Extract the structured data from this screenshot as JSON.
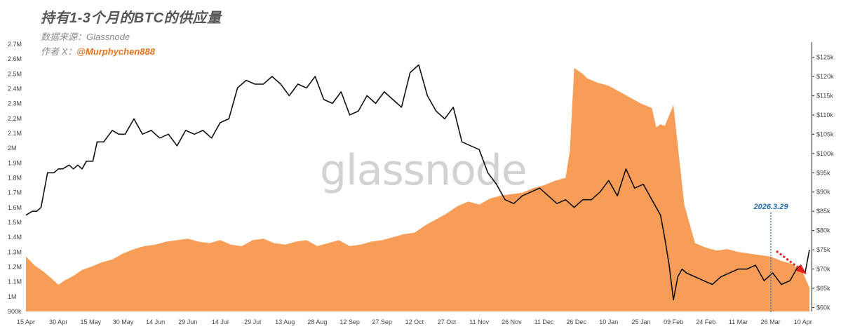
{
  "title": "持有1-3个月的BTC的供应量",
  "source_label": "数据来源：Glassnode",
  "author_label": "作者 X：",
  "author_handle": "@Murphychen888",
  "watermark": "glassnode",
  "colors": {
    "supply_fill": "#f89d58",
    "price_line": "#111111",
    "marker_line": "#1f6fb5",
    "arrow": "#e3221f",
    "title": "#555555",
    "handle": "#e8721c"
  },
  "chart_data": {
    "type": "area",
    "x_tick_labels": [
      "15 Apr",
      "30 Apr",
      "15 May",
      "30 May",
      "14 Jun",
      "29 Jun",
      "14 Jul",
      "29 Jul",
      "13 Aug",
      "28 Aug",
      "12 Sep",
      "27 Sep",
      "12 Oct",
      "27 Oct",
      "11 Nov",
      "26 Nov",
      "11 Dec",
      "26 Dec",
      "10 Jan",
      "25 Jan",
      "09 Feb",
      "24 Feb",
      "11 Mar",
      "26 Mar",
      "10 Apr"
    ],
    "left_axis": {
      "ylim": [
        900000,
        2700000
      ],
      "tick_labels": [
        "900k",
        "1M",
        "1.1M",
        "1.2M",
        "1.3M",
        "1.4M",
        "1.5M",
        "1.6M",
        "1.7M",
        "1.8M",
        "1.9M",
        "2M",
        "2.1M",
        "2.2M",
        "2.3M",
        "2.4M",
        "2.5M",
        "2.6M",
        "2.7M"
      ]
    },
    "right_axis": {
      "ylim": [
        60000,
        128000
      ],
      "tick_labels": [
        "$60k",
        "$65k",
        "$70k",
        "$75k",
        "$80k",
        "$85k",
        "$90k",
        "$95k",
        "$100k",
        "$105k",
        "$110k",
        "$115k",
        "$120k",
        "$125k"
      ]
    },
    "series": [
      {
        "axis": "left",
        "x_days": [
          0,
          4,
          8,
          12,
          15,
          18,
          22,
          26,
          30,
          35,
          40,
          45,
          50,
          55,
          60,
          65,
          70,
          75,
          80,
          85,
          90,
          95,
          100,
          105,
          110,
          115,
          120,
          125,
          130,
          135,
          140,
          145,
          150,
          155,
          160,
          165,
          170,
          175,
          180,
          185,
          190,
          195,
          200,
          205,
          210,
          215,
          220,
          225,
          230,
          235,
          240,
          245,
          250,
          252,
          254,
          256,
          258,
          260,
          265,
          270,
          275,
          280,
          285,
          290,
          292,
          294,
          296,
          300,
          305,
          310,
          315,
          320,
          325,
          330,
          335,
          340,
          345,
          350,
          355,
          360,
          363
        ],
        "values": [
          1270000,
          1210000,
          1170000,
          1120000,
          1080000,
          1110000,
          1140000,
          1180000,
          1200000,
          1230000,
          1250000,
          1290000,
          1320000,
          1340000,
          1350000,
          1370000,
          1380000,
          1390000,
          1370000,
          1360000,
          1380000,
          1350000,
          1340000,
          1380000,
          1390000,
          1360000,
          1350000,
          1370000,
          1380000,
          1340000,
          1360000,
          1380000,
          1340000,
          1350000,
          1370000,
          1380000,
          1400000,
          1420000,
          1430000,
          1480000,
          1520000,
          1560000,
          1610000,
          1640000,
          1620000,
          1660000,
          1680000,
          1690000,
          1700000,
          1730000,
          1750000,
          1780000,
          1800000,
          1980000,
          2540000,
          2520000,
          2500000,
          2470000,
          2440000,
          2420000,
          2380000,
          2340000,
          2300000,
          2270000,
          2140000,
          2160000,
          2150000,
          2290000,
          1620000,
          1360000,
          1330000,
          1310000,
          1320000,
          1300000,
          1290000,
          1280000,
          1270000,
          1240000,
          1220000,
          1160000,
          1060000
        ]
      },
      {
        "axis": "right",
        "x_days": [
          0,
          3,
          5,
          7,
          10,
          13,
          15,
          17,
          20,
          22,
          24,
          26,
          28,
          31,
          33,
          36,
          40,
          43,
          46,
          50,
          54,
          58,
          62,
          66,
          70,
          74,
          78,
          82,
          86,
          90,
          94,
          98,
          102,
          106,
          110,
          114,
          118,
          122,
          126,
          130,
          134,
          138,
          142,
          146,
          150,
          154,
          158,
          162,
          166,
          170,
          174,
          178,
          182,
          186,
          190,
          194,
          198,
          202,
          206,
          210,
          214,
          218,
          222,
          226,
          230,
          234,
          238,
          242,
          246,
          250,
          254,
          258,
          262,
          266,
          270,
          274,
          278,
          282,
          286,
          290,
          294,
          296,
          298,
          300,
          302,
          304,
          306,
          310,
          314,
          318,
          322,
          326,
          330,
          334,
          338,
          342,
          346,
          350,
          354,
          357,
          359,
          361,
          363
        ],
        "values": [
          84000,
          85000,
          85000,
          86000,
          95000,
          95000,
          96000,
          96000,
          97000,
          96000,
          97000,
          96000,
          98000,
          98000,
          103000,
          103000,
          106000,
          105000,
          105000,
          109000,
          105000,
          106000,
          104000,
          105000,
          102000,
          106000,
          105000,
          106000,
          104000,
          108000,
          109000,
          117000,
          119000,
          118000,
          118000,
          120000,
          118000,
          115000,
          118000,
          117000,
          120000,
          114000,
          113000,
          116000,
          110000,
          111000,
          115000,
          113000,
          116000,
          114000,
          112000,
          121000,
          123000,
          115000,
          111000,
          109000,
          112000,
          103000,
          102000,
          101000,
          95000,
          92000,
          88000,
          87000,
          89000,
          90000,
          91000,
          89000,
          87000,
          88000,
          86000,
          88000,
          88000,
          90000,
          93000,
          89000,
          96000,
          91000,
          92000,
          88000,
          84000,
          78000,
          71000,
          62000,
          68000,
          70000,
          69000,
          68000,
          67000,
          66000,
          68000,
          69000,
          70000,
          70000,
          71000,
          67000,
          69000,
          66000,
          67000,
          70000,
          71000,
          69000,
          75000
        ]
      }
    ],
    "annotations": [
      {
        "label": "2026.3.29",
        "x_day": 347
      }
    ]
  }
}
